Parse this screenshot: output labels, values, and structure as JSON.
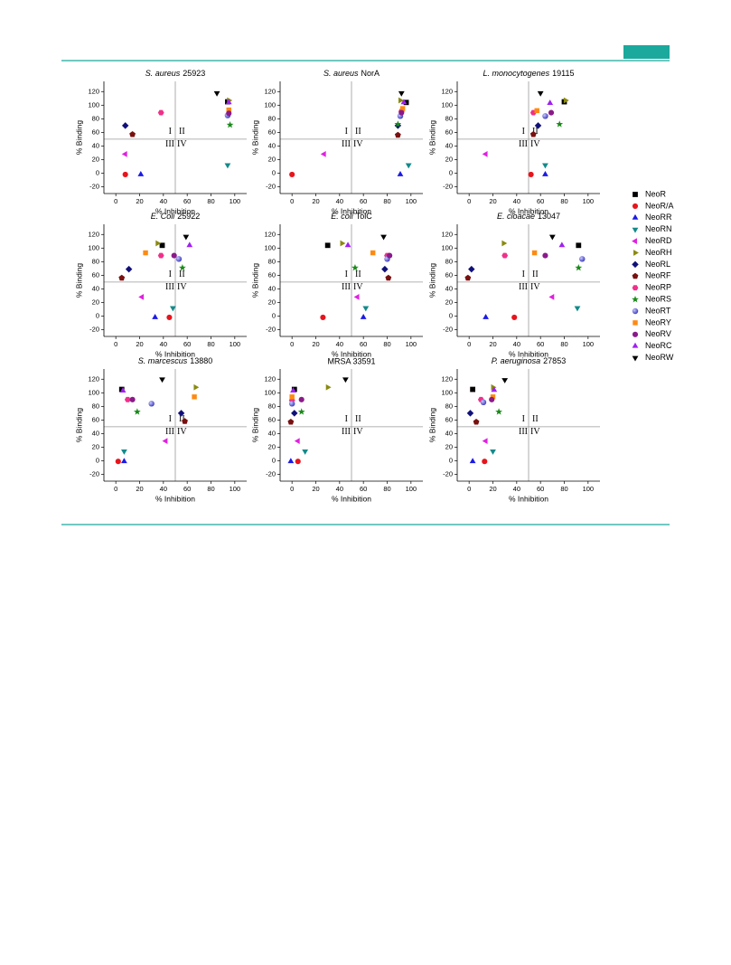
{
  "legend": [
    {
      "name": "NeoR",
      "color": "#000000",
      "marker": "square"
    },
    {
      "name": "NeoR/A",
      "color": "#e8141c",
      "marker": "circle"
    },
    {
      "name": "NeoRR",
      "color": "#1a1ae6",
      "marker": "triangle-up"
    },
    {
      "name": "NeoRN",
      "color": "#138a8a",
      "marker": "triangle-down"
    },
    {
      "name": "NeoRD",
      "color": "#e020e0",
      "marker": "triangle-left"
    },
    {
      "name": "NeoRH",
      "color": "#8a8a10",
      "marker": "triangle-right"
    },
    {
      "name": "NeoRL",
      "color": "#10107a",
      "marker": "diamond"
    },
    {
      "name": "NeoRF",
      "color": "#7a1010",
      "marker": "pentagon"
    },
    {
      "name": "NeoRP",
      "color": "#f0308a",
      "marker": "hexagon"
    },
    {
      "name": "NeoRS",
      "color": "#1a8a1a",
      "marker": "star"
    },
    {
      "name": "NeoRT",
      "color": "#3838b8",
      "marker": "sphere"
    },
    {
      "name": "NeoRY",
      "color": "#ff8a10",
      "marker": "small-square"
    },
    {
      "name": "NeoRV",
      "color": "#8a1a8a",
      "marker": "circle"
    },
    {
      "name": "NeoRC",
      "color": "#a020f0",
      "marker": "triangle-up"
    },
    {
      "name": "NeoRW",
      "color": "#000000",
      "marker": "triangle-down"
    }
  ],
  "chart_data": [
    {
      "type": "scatter",
      "title_species": "S. aureus",
      "title_strain": "25923",
      "xlabel": "% Inhibition",
      "ylabel": "% Binding",
      "xlim": [
        -10,
        110
      ],
      "ylim": [
        -30,
        135
      ],
      "xticks": [
        0,
        20,
        40,
        60,
        80,
        100
      ],
      "yticks": [
        -20,
        0,
        20,
        40,
        60,
        80,
        100,
        120
      ],
      "divider": [
        50,
        50
      ],
      "quadrants": [
        "I",
        "II",
        "III",
        "IV"
      ],
      "x": [
        94,
        8,
        21,
        94,
        8,
        95,
        8,
        14,
        38,
        96,
        94,
        95,
        95,
        95,
        85
      ],
      "values": [
        105,
        -2,
        -2,
        12,
        28,
        107,
        70,
        57,
        89,
        71,
        85,
        93,
        88,
        104,
        118
      ]
    },
    {
      "type": "scatter",
      "title_species": "S. aureus",
      "title_strain": "NorA",
      "xlabel": "% Inhibition",
      "ylabel": "% Binding",
      "xlim": [
        -10,
        110
      ],
      "ylim": [
        -30,
        135
      ],
      "xticks": [
        0,
        20,
        40,
        60,
        80,
        100
      ],
      "yticks": [
        -20,
        0,
        20,
        40,
        60,
        80,
        100,
        120
      ],
      "divider": [
        50,
        50
      ],
      "quadrants": [
        "I",
        "II",
        "III",
        "IV"
      ],
      "x": [
        96,
        0,
        91,
        98,
        27,
        91,
        89,
        89,
        92,
        89,
        91,
        93,
        92,
        94,
        92
      ],
      "values": [
        104,
        -2,
        -2,
        12,
        28,
        107,
        70,
        56,
        91,
        72,
        84,
        95,
        89,
        104,
        118
      ]
    },
    {
      "type": "scatter",
      "title_species": "L. monocytogenes",
      "title_strain": "19115",
      "xlabel": "% Inhibition",
      "ylabel": "% Binding",
      "xlim": [
        -10,
        110
      ],
      "ylim": [
        -30,
        135
      ],
      "xticks": [
        0,
        20,
        40,
        60,
        80,
        100
      ],
      "yticks": [
        -20,
        0,
        20,
        40,
        60,
        80,
        100,
        120
      ],
      "divider": [
        50,
        50
      ],
      "quadrants": [
        "I",
        "II",
        "III",
        "IV"
      ],
      "x": [
        80,
        52,
        64,
        64,
        14,
        81,
        58,
        54,
        54,
        76,
        64,
        57,
        69,
        68,
        60
      ],
      "values": [
        105,
        -2,
        -2,
        12,
        28,
        107,
        70,
        57,
        89,
        72,
        84,
        92,
        89,
        103,
        118
      ]
    },
    {
      "type": "scatter",
      "title_species": "E. Coli",
      "title_strain": "25922",
      "xlabel": "% Inhibition",
      "ylabel": "% Binding",
      "xlim": [
        -10,
        110
      ],
      "ylim": [
        -30,
        135
      ],
      "xticks": [
        0,
        20,
        40,
        60,
        80,
        100
      ],
      "yticks": [
        -20,
        0,
        20,
        40,
        60,
        80,
        100,
        120
      ],
      "divider": [
        50,
        50
      ],
      "quadrants": [
        "I",
        "II",
        "III",
        "IV"
      ],
      "x": [
        39,
        45,
        33,
        48,
        22,
        35,
        11,
        5,
        38,
        56,
        53,
        25,
        49,
        62,
        59
      ],
      "values": [
        104,
        -2,
        -2,
        12,
        28,
        107,
        69,
        56,
        89,
        71,
        84,
        93,
        89,
        104,
        117
      ]
    },
    {
      "type": "scatter",
      "title_species": "E. coli",
      "title_strain": "TolC",
      "xlabel": "% Inhibition",
      "ylabel": "% Binding",
      "xlim": [
        -10,
        110
      ],
      "ylim": [
        -30,
        135
      ],
      "xticks": [
        0,
        20,
        40,
        60,
        80,
        100
      ],
      "yticks": [
        -20,
        0,
        20,
        40,
        60,
        80,
        100,
        120
      ],
      "divider": [
        50,
        50
      ],
      "quadrants": [
        "I",
        "II",
        "III",
        "IV"
      ],
      "x": [
        30,
        26,
        60,
        62,
        55,
        42,
        78,
        81,
        80,
        53,
        80,
        68,
        82,
        47,
        77
      ],
      "values": [
        104,
        -2,
        -2,
        12,
        28,
        107,
        69,
        56,
        89,
        71,
        84,
        93,
        89,
        104,
        117
      ]
    },
    {
      "type": "scatter",
      "title_species": "E. cloacae",
      "title_strain": "13047",
      "xlabel": "% Inhibition",
      "ylabel": "% Binding",
      "xlim": [
        -10,
        110
      ],
      "ylim": [
        -30,
        135
      ],
      "xticks": [
        0,
        20,
        40,
        60,
        80,
        100
      ],
      "yticks": [
        -20,
        0,
        20,
        40,
        60,
        80,
        100,
        120
      ],
      "divider": [
        50,
        50
      ],
      "quadrants": [
        "I",
        "II",
        "III",
        "IV"
      ],
      "x": [
        92,
        38,
        14,
        91,
        70,
        29,
        2,
        -1,
        30,
        92,
        95,
        55,
        64,
        78,
        70
      ],
      "values": [
        104,
        -2,
        -2,
        12,
        28,
        107,
        69,
        56,
        89,
        71,
        84,
        93,
        89,
        104,
        117
      ]
    },
    {
      "type": "scatter",
      "title_species": "S. marcescus",
      "title_strain": "13880",
      "xlabel": "% Inhibition",
      "ylabel": "% Binding",
      "xlim": [
        -10,
        110
      ],
      "ylim": [
        -30,
        135
      ],
      "xticks": [
        0,
        20,
        40,
        60,
        80,
        100
      ],
      "yticks": [
        -20,
        0,
        20,
        40,
        60,
        80,
        100,
        120
      ],
      "divider": [
        50,
        50
      ],
      "quadrants": [
        "I",
        "II",
        "III",
        "IV"
      ],
      "x": [
        5,
        2,
        7,
        7,
        42,
        67,
        55,
        58,
        10,
        18,
        30,
        66,
        14,
        6,
        39
      ],
      "values": [
        105,
        -1,
        -1,
        14,
        29,
        108,
        70,
        58,
        90,
        72,
        84,
        94,
        90,
        103,
        120
      ]
    },
    {
      "type": "scatter",
      "title": "MRSA 33591",
      "xlabel": "% Inhibition",
      "ylabel": "% Binding",
      "xlim": [
        -10,
        110
      ],
      "ylim": [
        -30,
        135
      ],
      "xticks": [
        0,
        20,
        40,
        60,
        80,
        100
      ],
      "yticks": [
        -20,
        0,
        20,
        40,
        60,
        80,
        100,
        120
      ],
      "divider": [
        50,
        50
      ],
      "quadrants": [
        "I",
        "II",
        "III",
        "IV"
      ],
      "x": [
        2,
        5,
        -1,
        11,
        5,
        30,
        2,
        -1,
        0,
        8,
        0,
        0,
        8,
        1,
        45
      ],
      "values": [
        105,
        -1,
        -1,
        14,
        29,
        108,
        70,
        57,
        89,
        72,
        84,
        94,
        90,
        103,
        120
      ]
    },
    {
      "type": "scatter",
      "title_species": "P. aeruginosa",
      "title_strain": "27853",
      "xlabel": "% Inhibition",
      "ylabel": "% Binding",
      "xlim": [
        -10,
        110
      ],
      "ylim": [
        -30,
        135
      ],
      "xticks": [
        0,
        20,
        40,
        60,
        80,
        100
      ],
      "yticks": [
        -20,
        0,
        20,
        40,
        60,
        80,
        100,
        120
      ],
      "divider": [
        50,
        50
      ],
      "quadrants": [
        "I",
        "II",
        "III",
        "IV"
      ],
      "x": [
        3,
        13,
        3,
        20,
        14,
        20,
        1,
        6,
        10,
        25,
        12,
        20,
        19,
        21,
        30
      ],
      "values": [
        105,
        -1,
        -1,
        14,
        29,
        108,
        70,
        57,
        90,
        72,
        86,
        94,
        90,
        104,
        119
      ]
    }
  ]
}
